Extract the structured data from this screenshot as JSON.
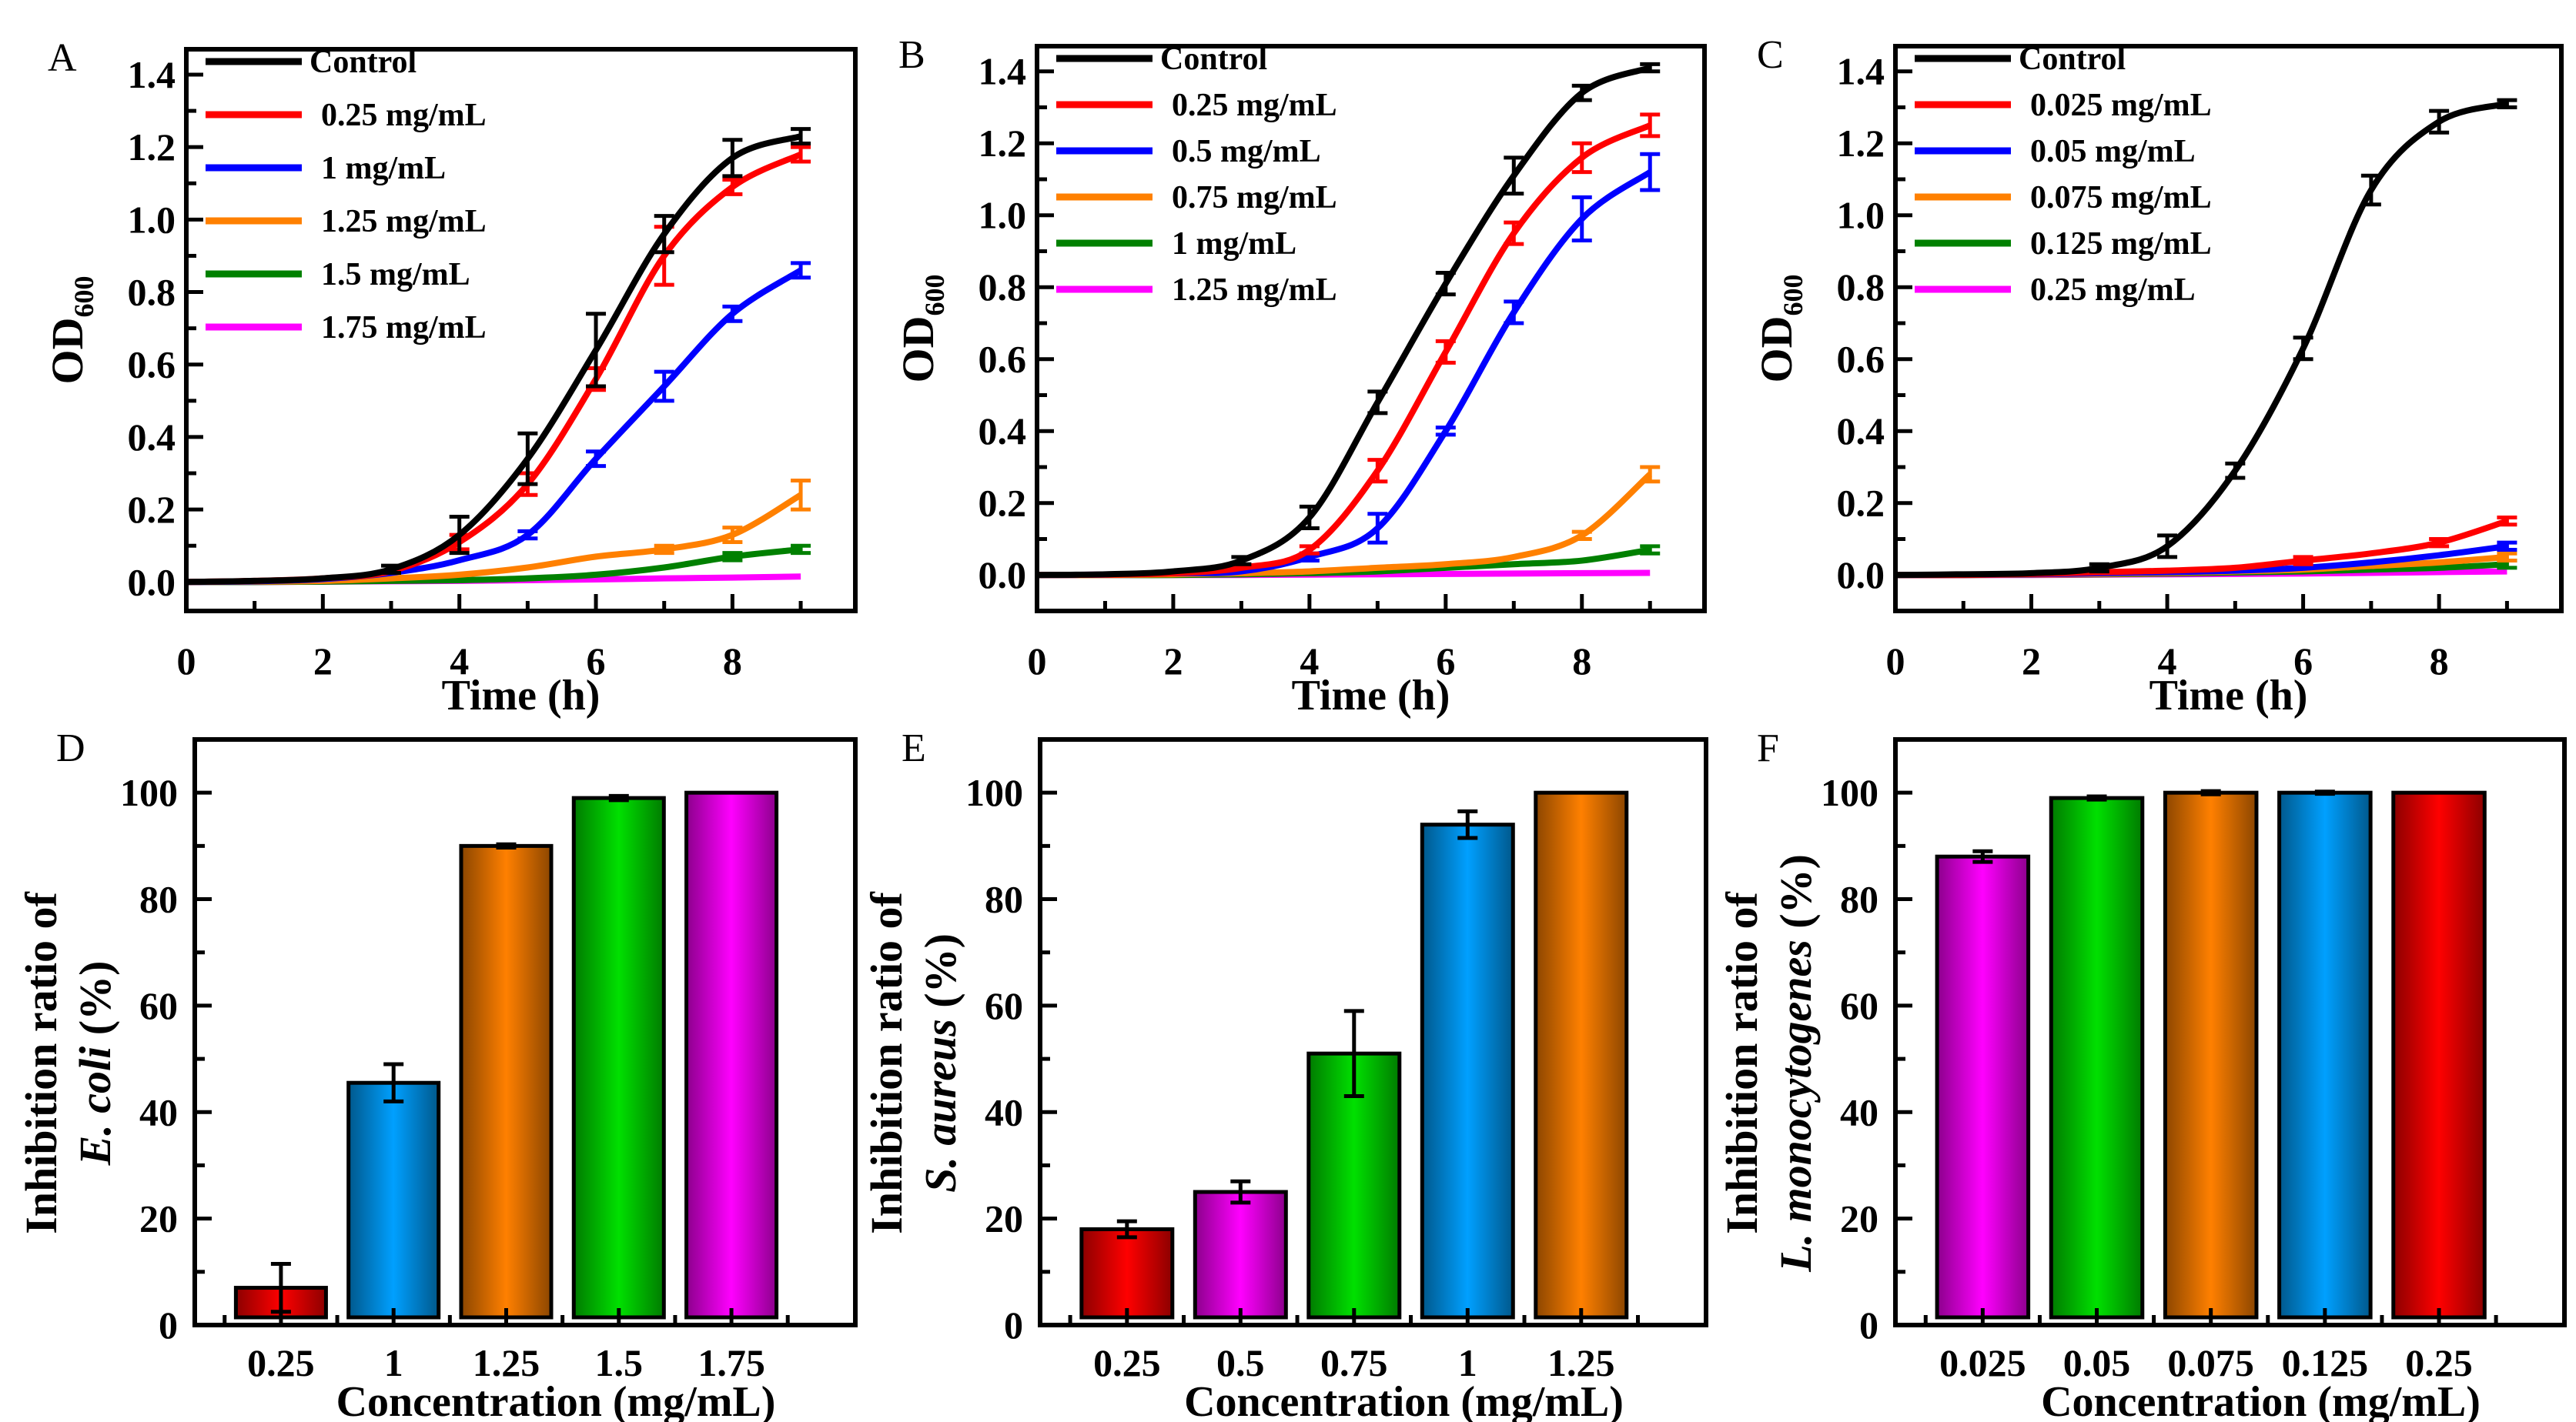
{
  "chart_data": [
    {
      "panel": "A",
      "type": "line",
      "xlabel": "Time (h)",
      "ylabel": "OD",
      "ylabel_sub": "600",
      "xlim": [
        0,
        9.8
      ],
      "ylim": [
        -0.08,
        1.47
      ],
      "xticks": [
        "0",
        "2",
        "4",
        "6",
        "8"
      ],
      "yticks": [
        "0.0",
        "0.2",
        "0.4",
        "0.6",
        "0.8",
        "1.0",
        "1.2",
        "1.4"
      ],
      "legend_placement": "top-left",
      "x": [
        0,
        1,
        2,
        3,
        4,
        5,
        6,
        7,
        8,
        9
      ],
      "series": [
        {
          "name": "Control",
          "color": "#000000",
          "values": [
            0,
            0.003,
            0.01,
            0.035,
            0.13,
            0.34,
            0.64,
            0.96,
            1.17,
            1.23
          ],
          "err": [
            0,
            0,
            0,
            0.01,
            0.05,
            0.07,
            0.1,
            0.05,
            0.05,
            0.02
          ]
        },
        {
          "name": "0.25 mg/mL",
          "color": "#ff0000",
          "values": [
            0,
            0.003,
            0.01,
            0.03,
            0.11,
            0.27,
            0.56,
            0.9,
            1.09,
            1.18
          ],
          "err": [
            0,
            0,
            0,
            0,
            0.02,
            0.03,
            0.03,
            0.08,
            0.02,
            0.02
          ]
        },
        {
          "name": "1 mg/mL",
          "color": "#0000ff",
          "values": [
            0,
            0.002,
            0.008,
            0.025,
            0.06,
            0.13,
            0.34,
            0.54,
            0.74,
            0.86
          ],
          "err": [
            0,
            0,
            0,
            0,
            0,
            0.01,
            0.02,
            0.04,
            0.02,
            0.02
          ]
        },
        {
          "name": "1.25 mg/mL",
          "color": "#ff8000",
          "values": [
            0,
            0.001,
            0.003,
            0.01,
            0.02,
            0.04,
            0.07,
            0.09,
            0.13,
            0.24
          ],
          "err": [
            0,
            0,
            0,
            0,
            0,
            0,
            0,
            0.01,
            0.02,
            0.04
          ]
        },
        {
          "name": "1.5 mg/mL",
          "color": "#008000",
          "values": [
            0,
            0,
            0.001,
            0.003,
            0.005,
            0.01,
            0.02,
            0.04,
            0.07,
            0.09
          ],
          "err": [
            0,
            0,
            0,
            0,
            0,
            0,
            0,
            0,
            0.01,
            0.01
          ]
        },
        {
          "name": "1.75 mg/mL",
          "color": "#ff00ff",
          "values": [
            0,
            0,
            0.001,
            0.002,
            0.003,
            0.005,
            0.007,
            0.01,
            0.012,
            0.015
          ],
          "err": [
            0,
            0,
            0,
            0,
            0,
            0,
            0,
            0,
            0,
            0
          ]
        }
      ]
    },
    {
      "panel": "B",
      "type": "line",
      "xlabel": "Time (h)",
      "ylabel": "OD",
      "ylabel_sub": "600",
      "xlim": [
        0,
        9.8
      ],
      "ylim": [
        -0.1,
        1.47
      ],
      "xticks": [
        "0",
        "2",
        "4",
        "6",
        "8"
      ],
      "yticks": [
        "0.0",
        "0.2",
        "0.4",
        "0.6",
        "0.8",
        "1.0",
        "1.2",
        "1.4"
      ],
      "legend_placement": "top-left",
      "x": [
        0,
        1,
        2,
        3,
        4,
        5,
        6,
        7,
        8,
        9
      ],
      "series": [
        {
          "name": "Control",
          "color": "#000000",
          "values": [
            0,
            0.002,
            0.01,
            0.04,
            0.16,
            0.48,
            0.81,
            1.11,
            1.34,
            1.41
          ],
          "err": [
            0,
            0,
            0,
            0.01,
            0.03,
            0.03,
            0.03,
            0.05,
            0.02,
            0.01
          ]
        },
        {
          "name": "0.25 mg/mL",
          "color": "#ff0000",
          "values": [
            0,
            0.001,
            0.005,
            0.02,
            0.07,
            0.29,
            0.62,
            0.95,
            1.16,
            1.25
          ],
          "err": [
            0,
            0,
            0,
            0,
            0.01,
            0.03,
            0.03,
            0.03,
            0.04,
            0.03
          ]
        },
        {
          "name": "0.5 mg/mL",
          "color": "#0000ff",
          "values": [
            0,
            0.001,
            0.005,
            0.01,
            0.05,
            0.13,
            0.4,
            0.73,
            0.99,
            1.12
          ],
          "err": [
            0,
            0,
            0,
            0,
            0.01,
            0.04,
            0.01,
            0.03,
            0.06,
            0.05
          ]
        },
        {
          "name": "0.75 mg/mL",
          "color": "#ff8000",
          "values": [
            0,
            0,
            0.002,
            0.005,
            0.01,
            0.02,
            0.03,
            0.05,
            0.11,
            0.28
          ],
          "err": [
            0,
            0,
            0,
            0,
            0,
            0,
            0,
            0,
            0.01,
            0.02
          ]
        },
        {
          "name": "1 mg/mL",
          "color": "#008000",
          "values": [
            0,
            0,
            0,
            0.002,
            0.005,
            0.01,
            0.02,
            0.03,
            0.04,
            0.07
          ],
          "err": [
            0,
            0,
            0,
            0,
            0,
            0,
            0,
            0,
            0,
            0.01
          ]
        },
        {
          "name": "1.25 mg/mL",
          "color": "#ff00ff",
          "values": [
            0,
            0,
            0,
            0,
            0.001,
            0.002,
            0.003,
            0.004,
            0.005,
            0.006
          ],
          "err": [
            0,
            0,
            0,
            0,
            0,
            0,
            0,
            0,
            0,
            0
          ]
        }
      ]
    },
    {
      "panel": "C",
      "type": "line",
      "xlabel": "Time (h)",
      "ylabel": "OD",
      "ylabel_sub": "600",
      "xlim": [
        0,
        9.8
      ],
      "ylim": [
        -0.1,
        1.47
      ],
      "xticks": [
        "0",
        "2",
        "4",
        "6",
        "8"
      ],
      "yticks": [
        "0.0",
        "0.2",
        "0.4",
        "0.6",
        "0.8",
        "1.0",
        "1.2",
        "1.4"
      ],
      "legend_placement": "top-left",
      "x": [
        0,
        1,
        2,
        3,
        4,
        5,
        6,
        7,
        8,
        9
      ],
      "series": [
        {
          "name": "Control",
          "color": "#000000",
          "values": [
            0,
            0.002,
            0.005,
            0.02,
            0.08,
            0.29,
            0.63,
            1.07,
            1.26,
            1.31
          ],
          "err": [
            0,
            0,
            0,
            0.01,
            0.03,
            0.02,
            0.03,
            0.04,
            0.03,
            0.01
          ]
        },
        {
          "name": "0.025 mg/mL",
          "color": "#ff0000",
          "values": [
            0,
            0,
            0.003,
            0.008,
            0.012,
            0.02,
            0.04,
            0.06,
            0.09,
            0.15
          ],
          "err": [
            0,
            0,
            0,
            0,
            0,
            0,
            0.01,
            0,
            0.01,
            0.01
          ]
        },
        {
          "name": "0.05 mg/mL",
          "color": "#0000ff",
          "values": [
            0,
            0,
            0.002,
            0.005,
            0.008,
            0.012,
            0.02,
            0.035,
            0.055,
            0.08
          ],
          "err": [
            0,
            0,
            0,
            0,
            0,
            0,
            0,
            0,
            0,
            0.01
          ]
        },
        {
          "name": "0.075 mg/mL",
          "color": "#ff8000",
          "values": [
            0,
            0,
            0.001,
            0.003,
            0.006,
            0.01,
            0.015,
            0.025,
            0.035,
            0.05
          ],
          "err": [
            0,
            0,
            0,
            0,
            0,
            0,
            0,
            0,
            0,
            0.01
          ]
        },
        {
          "name": "0.125 mg/mL",
          "color": "#008000",
          "values": [
            0,
            0,
            0.001,
            0.002,
            0.004,
            0.007,
            0.01,
            0.015,
            0.02,
            0.03
          ],
          "err": [
            0,
            0,
            0,
            0,
            0,
            0,
            0,
            0,
            0,
            0.01
          ]
        },
        {
          "name": "0.25 mg/mL",
          "color": "#ff00ff",
          "values": [
            0,
            0,
            0,
            0.001,
            0.002,
            0.003,
            0.004,
            0.006,
            0.008,
            0.01
          ],
          "err": [
            0,
            0,
            0,
            0,
            0,
            0,
            0,
            0,
            0,
            0
          ]
        }
      ]
    },
    {
      "panel": "D",
      "type": "bar",
      "xlabel": "Concentration (mg/mL)",
      "ylabel": "Inhibition ratio of",
      "ylabel_species": "E. coli",
      "ylabel_unit": " (%)",
      "ylim": [
        0,
        110
      ],
      "yticks": [
        "0",
        "20",
        "40",
        "60",
        "80",
        "100"
      ],
      "categories": [
        "0.25",
        "1",
        "1.25",
        "1.5",
        "1.75"
      ],
      "values": [
        7,
        45.5,
        90,
        99,
        100
      ],
      "err": [
        4.5,
        3.5,
        0.3,
        0.4,
        0
      ],
      "colors": [
        "#ff0000",
        "#00a0ff",
        "#ff8000",
        "#00e000",
        "#ff00ff"
      ]
    },
    {
      "panel": "E",
      "type": "bar",
      "xlabel": "Concentration (mg/mL)",
      "ylabel": "Inhibition ratio of",
      "ylabel_species": "S. aureus",
      "ylabel_unit": " (%)",
      "ylim": [
        0,
        110
      ],
      "yticks": [
        "0",
        "20",
        "40",
        "60",
        "80",
        "100"
      ],
      "categories": [
        "0.25",
        "0.5",
        "0.75",
        "1",
        "1.25"
      ],
      "values": [
        18,
        25,
        51,
        94,
        100
      ],
      "err": [
        1.5,
        2,
        8,
        2.5,
        0
      ],
      "colors": [
        "#ff0000",
        "#ff00ff",
        "#00e000",
        "#00a0ff",
        "#ff8000"
      ]
    },
    {
      "panel": "F",
      "type": "bar",
      "xlabel": "Concentration (mg/mL)",
      "ylabel": "Inhibition ratio of",
      "ylabel_species": "L. monocytogenes",
      "ylabel_unit": " (%)",
      "ylim": [
        0,
        110
      ],
      "yticks": [
        "0",
        "20",
        "40",
        "60",
        "80",
        "100"
      ],
      "categories": [
        "0.025",
        "0.05",
        "0.075",
        "0.125",
        "0.25"
      ],
      "values": [
        88,
        99,
        100,
        100,
        100
      ],
      "err": [
        1,
        0.3,
        0.3,
        0.2,
        0
      ],
      "colors": [
        "#ff00ff",
        "#00e000",
        "#ff8000",
        "#00a0ff",
        "#ff0000"
      ]
    }
  ]
}
